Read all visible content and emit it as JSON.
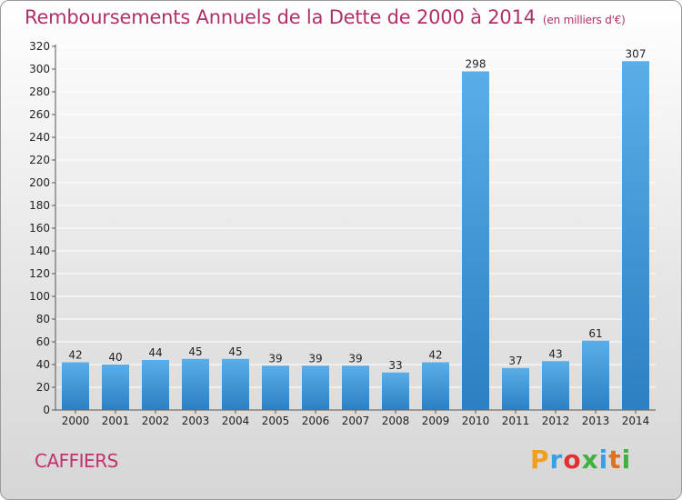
{
  "header": {
    "title": "Remboursements Annuels de la Dette de 2000 à 2014",
    "unit": "(en milliers d'€)"
  },
  "footer": {
    "commune": "CAFFIERS",
    "logo": "Proxiti",
    "logo_colors": [
      "#f0a020",
      "#3aa0e0",
      "#e03030",
      "#40b040",
      "#3aa0e0",
      "#e07020",
      "#40b040"
    ]
  },
  "chart_data": {
    "type": "bar",
    "title": "Remboursements Annuels de la Dette de 2000 à 2014",
    "subtitle": "(en milliers d'€)",
    "categories": [
      "2000",
      "2001",
      "2002",
      "2003",
      "2004",
      "2005",
      "2006",
      "2007",
      "2008",
      "2009",
      "2010",
      "2011",
      "2012",
      "2013",
      "2014"
    ],
    "values": [
      42,
      40,
      44,
      45,
      45,
      39,
      39,
      39,
      33,
      42,
      298,
      37,
      43,
      61,
      307
    ],
    "value_labels": [
      "42",
      "40",
      "44",
      "45",
      "45",
      "39",
      "39",
      "39",
      "33",
      "42",
      "298",
      "37",
      "43",
      "61",
      "307"
    ],
    "yticks": [
      "0",
      "20",
      "40",
      "60",
      "80",
      "100",
      "120",
      "140",
      "160",
      "180",
      "200",
      "220",
      "240",
      "260",
      "280",
      "300",
      "320"
    ],
    "ylim": [
      0,
      320
    ],
    "grid": true,
    "colors": {
      "bar_light": "#5aaee8",
      "bar_dark": "#2c7fc2",
      "grid": "#ffffff",
      "axis": "#555555"
    }
  }
}
